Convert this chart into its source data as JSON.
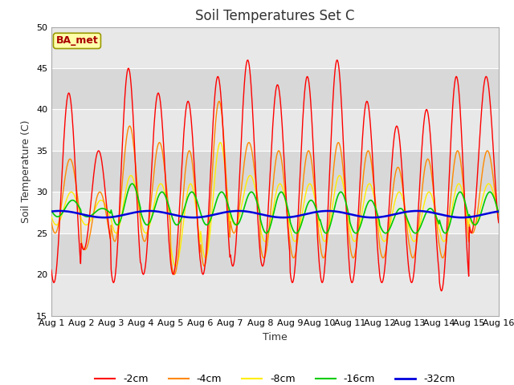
{
  "title": "Soil Temperatures Set C",
  "xlabel": "Time",
  "ylabel": "Soil Temperature (C)",
  "ylim": [
    15,
    50
  ],
  "xlim_days": [
    0,
    15
  ],
  "x_tick_labels": [
    "Aug 1",
    "Aug 2",
    "Aug 3",
    "Aug 4",
    "Aug 5",
    "Aug 6",
    "Aug 7",
    "Aug 8",
    "Aug 9",
    "Aug 10",
    "Aug 11",
    "Aug 12",
    "Aug 13",
    "Aug 14",
    "Aug 15",
    "Aug 16"
  ],
  "legend_labels": [
    "-2cm",
    "-4cm",
    "-8cm",
    "-16cm",
    "-32cm"
  ],
  "line_colors": [
    "#ff0000",
    "#ff8800",
    "#ffee00",
    "#00cc00",
    "#0000dd"
  ],
  "background_color": "#ffffff",
  "plot_bg_color": "#e8e8e8",
  "band_colors": [
    "#e8e8e8",
    "#d8d8d8"
  ],
  "ba_met_text": "BA_met",
  "ba_met_bg": "#ffffaa",
  "ba_met_border": "#999900",
  "ba_met_text_color": "#aa0000",
  "title_fontsize": 12,
  "axis_label_fontsize": 9,
  "tick_fontsize": 8,
  "legend_fontsize": 9,
  "num_days": 15,
  "samples_per_day": 48,
  "peak_2cm": [
    42,
    35,
    45,
    42,
    41,
    44,
    46,
    43,
    44,
    46,
    41,
    38,
    40,
    44,
    44
  ],
  "min_2cm": [
    19,
    23,
    19,
    20,
    20,
    20,
    21,
    21,
    19,
    19,
    19,
    19,
    19,
    18,
    25
  ],
  "peak_4cm": [
    34,
    30,
    38,
    36,
    35,
    41,
    36,
    35,
    35,
    36,
    35,
    33,
    34,
    35,
    35
  ],
  "min_4cm": [
    25,
    23,
    24,
    24,
    20,
    21,
    25,
    22,
    22,
    22,
    22,
    22,
    22,
    22,
    25
  ],
  "peak_8cm": [
    30,
    29,
    32,
    31,
    31,
    36,
    32,
    31,
    31,
    32,
    31,
    30,
    30,
    31,
    31
  ],
  "min_8cm": [
    26,
    26,
    25,
    25,
    21,
    22,
    26,
    24,
    24,
    24,
    24,
    24,
    24,
    24,
    26
  ],
  "peak_16cm": [
    29,
    28,
    31,
    30,
    30,
    30,
    30,
    30,
    29,
    30,
    29,
    28,
    28,
    30,
    30
  ],
  "min_16cm": [
    27,
    27,
    26,
    26,
    26,
    26,
    26,
    25,
    25,
    25,
    25,
    25,
    25,
    25,
    26
  ],
  "peak_hour_2cm": 14.0,
  "peak_hour_4cm": 15.0,
  "peak_hour_8cm": 16.0,
  "peak_hour_16cm": 17.0,
  "base_32cm": 27.3,
  "amp_32cm": 0.4,
  "period_32cm": 3.0
}
